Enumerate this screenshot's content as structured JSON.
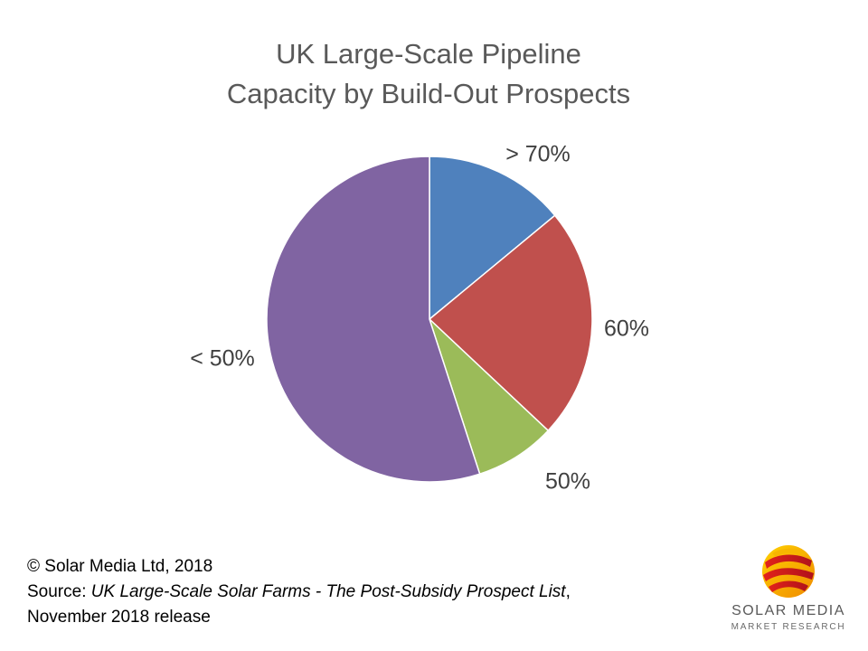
{
  "chart_data": {
    "type": "pie",
    "title": "UK Large-Scale Pipeline",
    "subtitle": "Capacity by Build-Out Prospects",
    "slices": [
      {
        "label": "> 70%",
        "value": 14,
        "color": "#4F81BD"
      },
      {
        "label": "60%",
        "value": 23,
        "color": "#C0504D"
      },
      {
        "label": "50%",
        "value": 8,
        "color": "#9BBB59"
      },
      {
        "label": "< 50%",
        "value": 55,
        "color": "#8064A2"
      }
    ],
    "legend": "none"
  },
  "footer": {
    "copyright": "© Solar Media Ltd, 2018",
    "source_prefix": "Source: ",
    "source_title": "UK Large-Scale Solar Farms - The Post-Subsidy Prospect List",
    "source_suffix": ",",
    "release": "November 2018 release"
  },
  "logo": {
    "name": "SOLAR MEDIA",
    "subtitle": "MARKET RESEARCH"
  }
}
